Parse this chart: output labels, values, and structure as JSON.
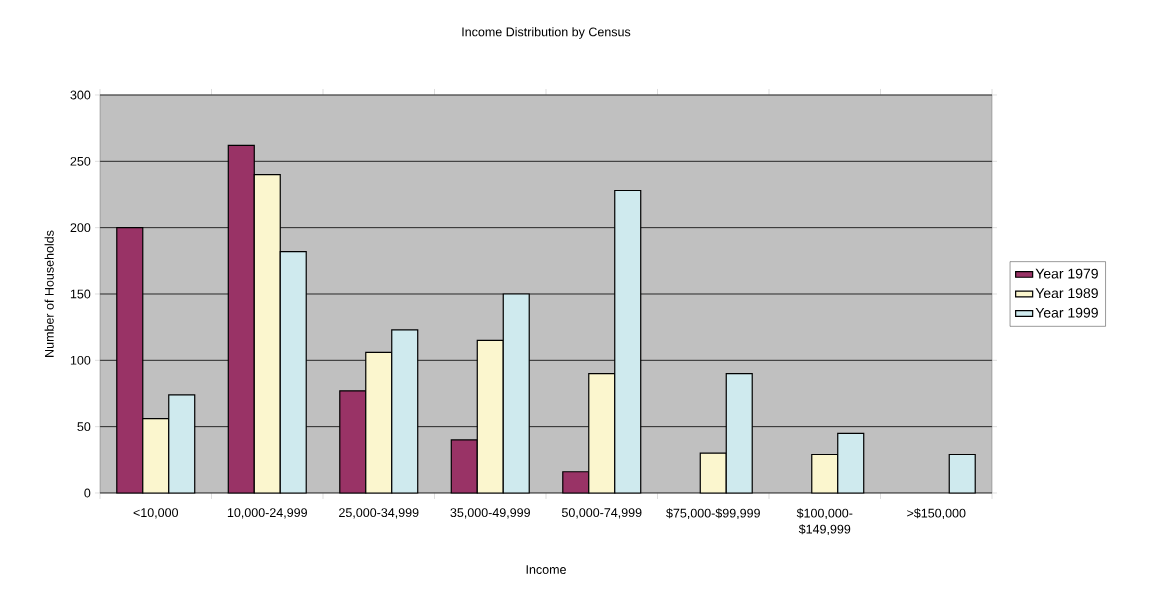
{
  "chart_data": {
    "type": "bar",
    "title": "Income Distribution by Census",
    "xlabel": "Income",
    "ylabel": "Number of Households",
    "categories": [
      "<10,000",
      "10,000-24,999",
      "25,000-34,999",
      "35,000-49,999",
      "50,000-74,999",
      "$75,000-$99,999",
      "$100,000-$149,999",
      ">$150,000"
    ],
    "series": [
      {
        "name": "Year 1979",
        "color": "#993366",
        "values": [
          200,
          262,
          77,
          40,
          16,
          null,
          null,
          null
        ]
      },
      {
        "name": "Year 1989",
        "color": "#fbf6ce",
        "values": [
          56,
          240,
          106,
          115,
          90,
          30,
          29,
          null
        ]
      },
      {
        "name": "Year 1999",
        "color": "#cfeaee",
        "values": [
          74,
          182,
          123,
          150,
          228,
          90,
          45,
          29
        ]
      }
    ],
    "ylim": [
      0,
      300
    ],
    "yticks": [
      0,
      50,
      100,
      150,
      200,
      250,
      300
    ],
    "grid": "y",
    "legend": "right"
  }
}
